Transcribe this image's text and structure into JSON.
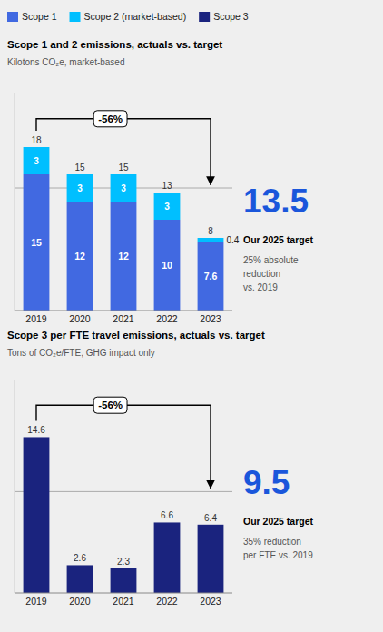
{
  "chart_data": [
    {
      "type": "bar",
      "title": "Scope 1 and 2 emissions, actuals vs. target",
      "subtitle": "Kilotons CO₂e, market-based",
      "categories": [
        "2019",
        "2020",
        "2021",
        "2022",
        "2023"
      ],
      "series": [
        {
          "name": "Scope 1",
          "color": "#4169e1",
          "values": [
            15,
            12,
            12,
            10,
            7.6
          ]
        },
        {
          "name": "Scope 2 (market-based)",
          "color": "#00bfff",
          "values": [
            3,
            3,
            3,
            3,
            0.4
          ]
        }
      ],
      "totals": [
        18,
        15,
        15,
        13,
        8
      ],
      "stacked": true,
      "data_labels": true,
      "tick_labels": "x",
      "legend": "top",
      "ylim": [
        0,
        24
      ],
      "reference_line": {
        "value": 13.5,
        "label": "13.5",
        "color": "#1a56db"
      },
      "annotations": [
        "-56%",
        "Our 2025 target",
        "25% absolute\nreduction\nvs. 2019"
      ]
    },
    {
      "type": "bar",
      "title": "Scope 3 per FTE travel emissions, actuals vs. target",
      "subtitle": "Tons of CO₂e/FTE, GHG impact only",
      "categories": [
        "2019",
        "2020",
        "2021",
        "2022",
        "2023"
      ],
      "series": [
        {
          "name": "Scope 3",
          "color": "#1a237e",
          "values": [
            14.6,
            2.6,
            2.3,
            6.6,
            6.4
          ]
        }
      ],
      "data_labels": true,
      "tick_labels": "x",
      "legend": "top",
      "ylim": [
        0,
        20
      ],
      "reference_line": {
        "value": 9.5,
        "label": "9.5",
        "color": "#1a56db"
      },
      "annotations": [
        "-56%",
        "Our 2025 target",
        "35% reduction\nper FTE vs. 2019"
      ]
    }
  ]
}
